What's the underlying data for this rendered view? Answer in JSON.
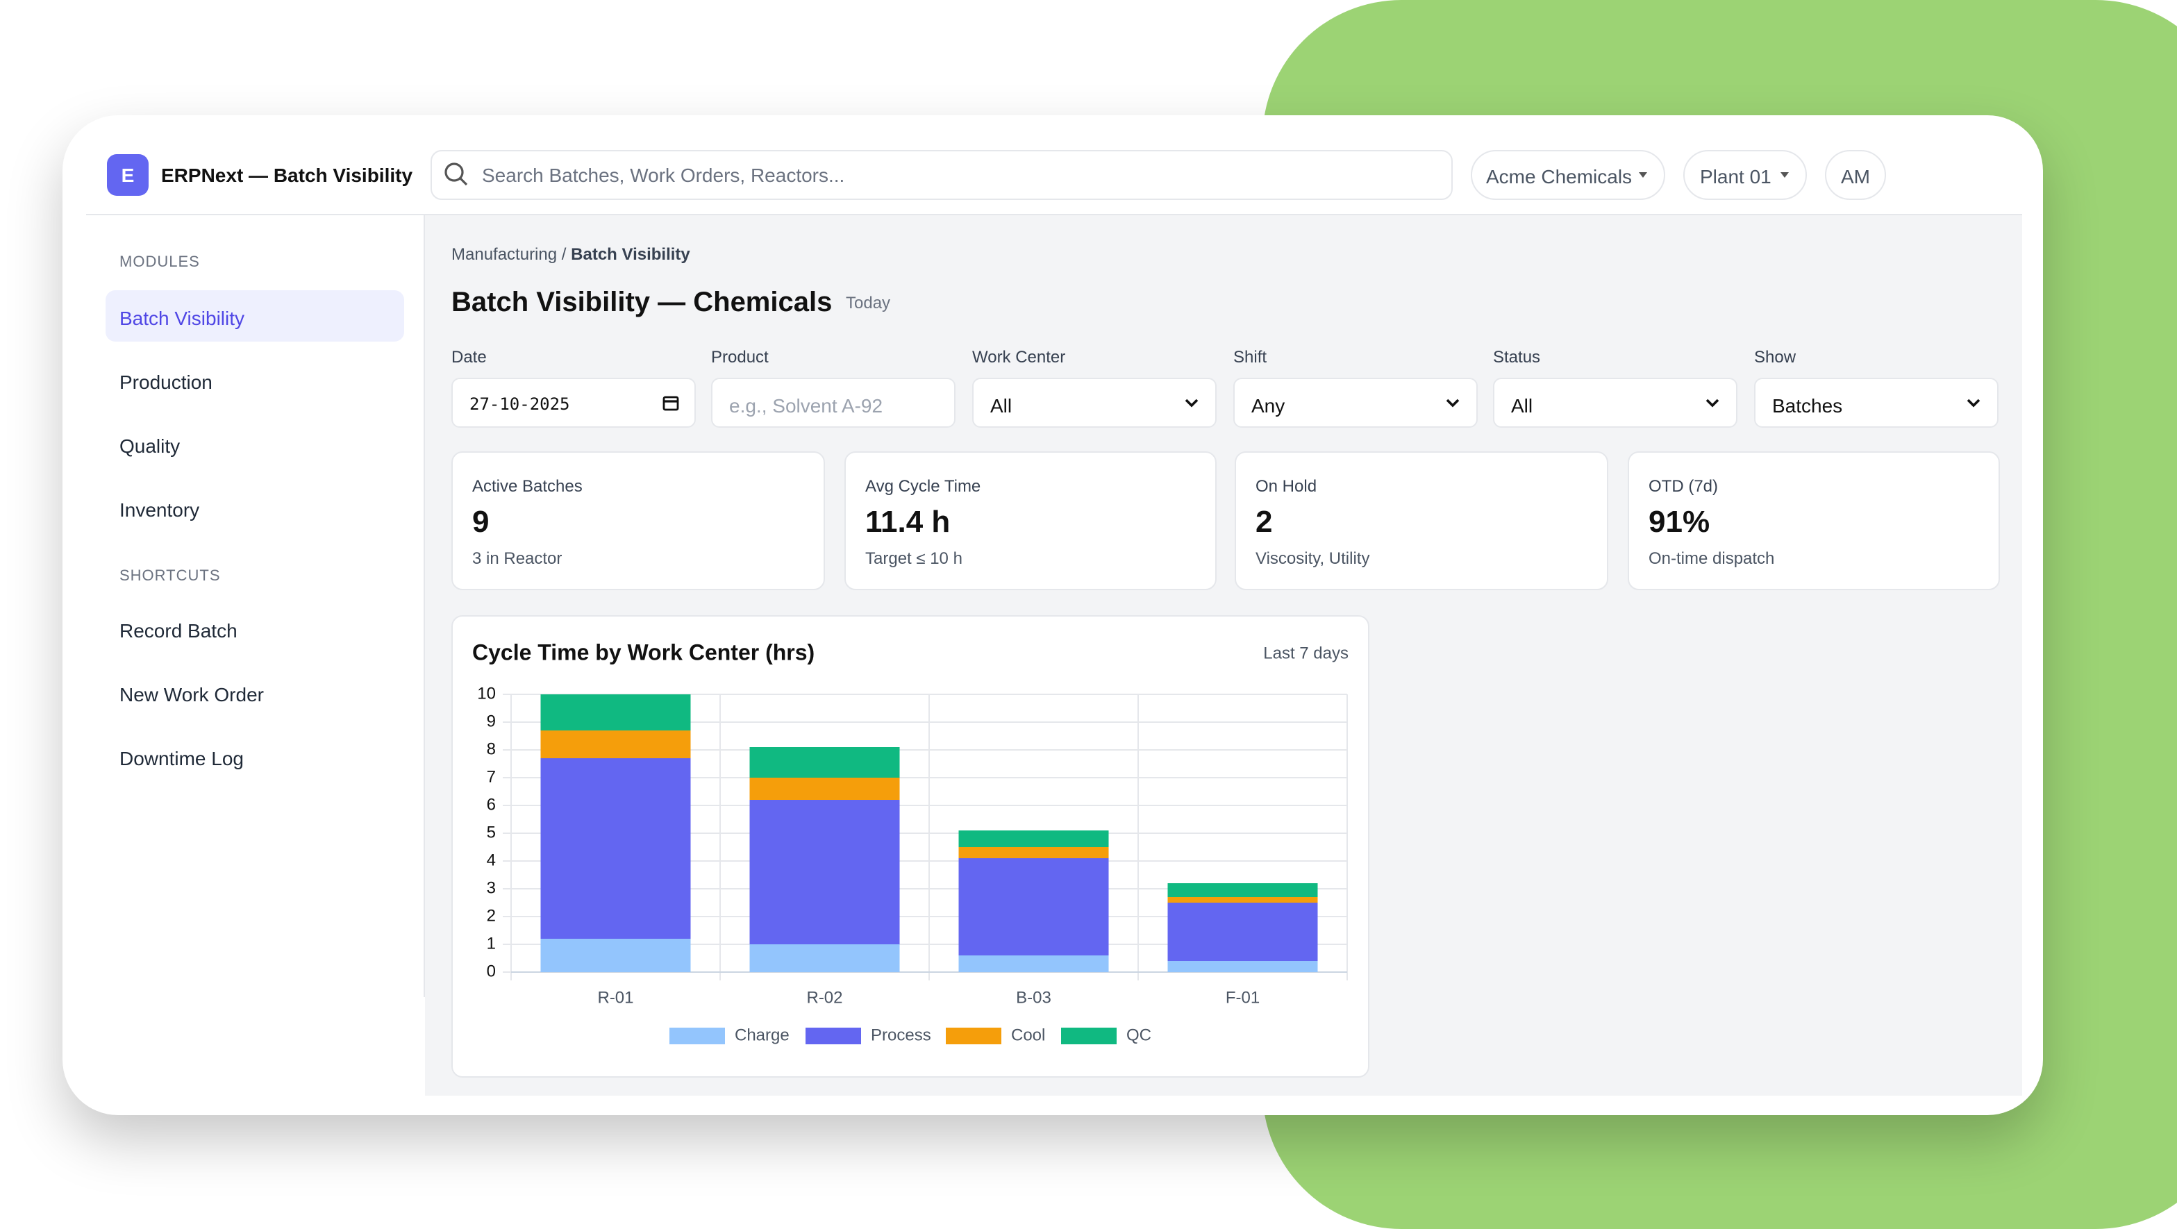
{
  "header": {
    "logo": "E",
    "app_title": "ERPNext — Batch Visibility",
    "search_placeholder": "Search Batches, Work Orders, Reactors...",
    "company": "Acme Chemicals",
    "plant": "Plant 01",
    "user": "AM"
  },
  "sidebar": {
    "modules_label": "MODULES",
    "modules": [
      "Batch Visibility",
      "Production",
      "Quality",
      "Inventory"
    ],
    "shortcuts_label": "SHORTCUTS",
    "shortcuts": [
      "Record Batch",
      "New Work Order",
      "Downtime Log"
    ]
  },
  "breadcrumb": {
    "parent": "Manufacturing",
    "separator": "/",
    "current": "Batch Visibility"
  },
  "page": {
    "title": "Batch Visibility — Chemicals",
    "badge": "Today"
  },
  "filters": [
    {
      "label": "Date",
      "value": "27-10-2025"
    },
    {
      "label": "Product",
      "placeholder": "e.g., Solvent A-92"
    },
    {
      "label": "Work Center",
      "value": "All"
    },
    {
      "label": "Shift",
      "value": "Any"
    },
    {
      "label": "Status",
      "value": "All"
    },
    {
      "label": "Show",
      "value": "Batches"
    }
  ],
  "kpis": [
    {
      "label": "Active Batches",
      "value": "9",
      "note": "3 in Reactor"
    },
    {
      "label": "Avg Cycle Time",
      "value": "11.4 h",
      "note": "Target ≤ 10 h"
    },
    {
      "label": "On Hold",
      "value": "2",
      "note": "Viscosity, Utility"
    },
    {
      "label": "OTD (7d)",
      "value": "91%",
      "note": "On-time dispatch"
    }
  ],
  "chart_data": {
    "type": "bar",
    "stacked": true,
    "title": "Cycle Time by Work Center (hrs)",
    "subtitle": "Last 7 days",
    "categories": [
      "R-01",
      "R-02",
      "B-03",
      "F-01"
    ],
    "series": [
      {
        "name": "Charge",
        "color": "#93c5fd",
        "values": [
          1.2,
          1.0,
          0.6,
          0.4
        ]
      },
      {
        "name": "Process",
        "color": "#6366f1",
        "values": [
          6.5,
          5.2,
          3.5,
          2.1
        ]
      },
      {
        "name": "Cool",
        "color": "#f59e0b",
        "values": [
          1.0,
          0.8,
          0.4,
          0.2
        ]
      },
      {
        "name": "QC",
        "color": "#10b981",
        "values": [
          1.3,
          1.1,
          0.6,
          0.5
        ]
      }
    ],
    "ylim": [
      0,
      10
    ],
    "yticks": [
      0,
      1,
      2,
      3,
      4,
      5,
      6,
      7,
      8,
      9,
      10
    ],
    "grid": true,
    "legend": "bottom"
  }
}
